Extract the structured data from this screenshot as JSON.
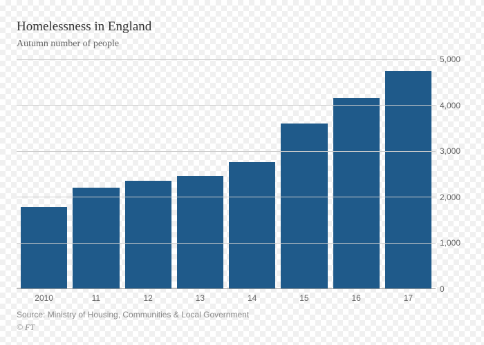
{
  "chart": {
    "type": "bar",
    "title": "Homelessness in England",
    "subtitle": "Autumn number of people",
    "title_fontsize": 19,
    "title_color": "#333333",
    "subtitle_fontsize": 14,
    "subtitle_color": "#666666",
    "categories": [
      "2010",
      "11",
      "12",
      "13",
      "14",
      "15",
      "16",
      "17"
    ],
    "values": [
      1780,
      2200,
      2350,
      2450,
      2750,
      3600,
      4150,
      4750
    ],
    "bar_color": "#1f5a8a",
    "ymin": 0,
    "ymax": 5000,
    "ytick_step": 1000,
    "yticks": [
      0,
      1000,
      2000,
      3000,
      4000,
      5000
    ],
    "ytick_labels": [
      "0",
      "1,000",
      "2,000",
      "3,000",
      "4,000",
      "5,000"
    ],
    "grid_color": "#cccccc",
    "axis_color": "#999999",
    "tick_fontsize": 12,
    "tick_color": "#666666",
    "bar_gap": 8,
    "background": "checker-transparent"
  },
  "footer": {
    "source": "Source: Ministry of Housing, Communities & Local Government",
    "credit": "© FT",
    "fontsize": 12,
    "color": "#888888"
  }
}
